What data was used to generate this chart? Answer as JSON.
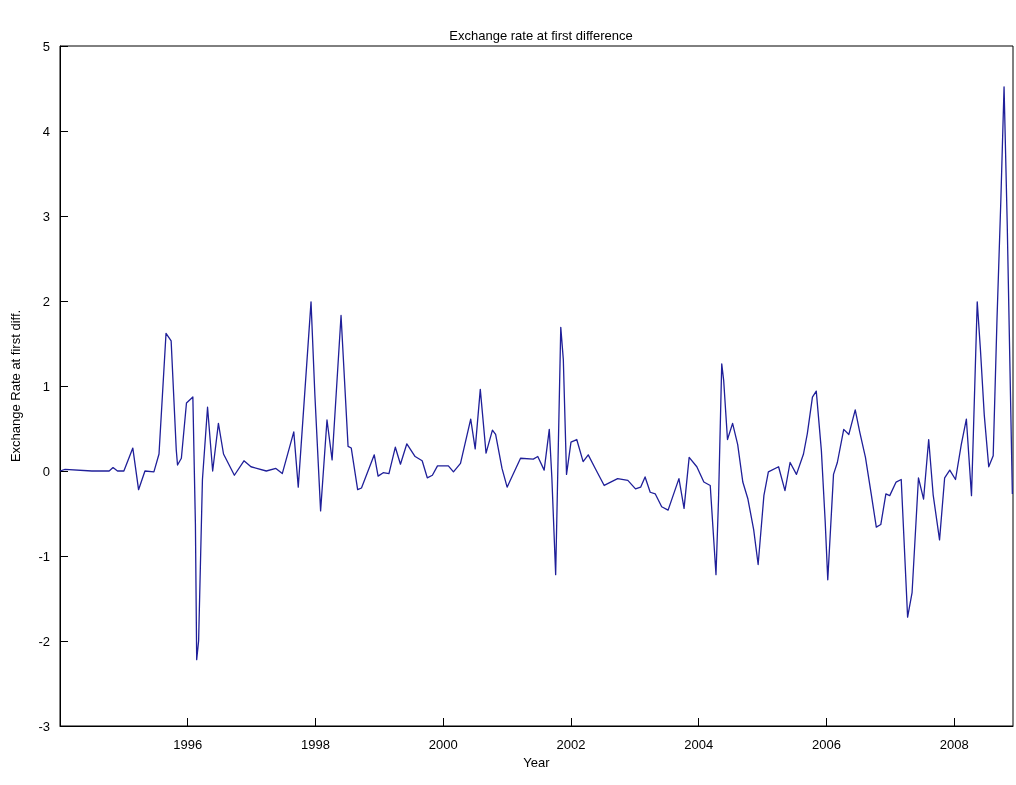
{
  "chart_data": {
    "type": "line",
    "title": "Exchange rate at first difference",
    "xlabel": "Year",
    "ylabel": "Exchange Rate at first diff.",
    "x": [
      1994.0,
      1994.08,
      1994.5,
      1994.77,
      1994.83,
      1994.9,
      1995.0,
      1995.14,
      1995.23,
      1995.33,
      1995.47,
      1995.55,
      1995.66,
      1995.74,
      1995.82,
      1995.84,
      1995.9,
      1995.98,
      1996.08,
      1996.12,
      1996.14,
      1996.17,
      1996.23,
      1996.31,
      1996.39,
      1996.48,
      1996.56,
      1996.73,
      1996.88,
      1996.99,
      1997.23,
      1997.38,
      1997.48,
      1997.66,
      1997.73,
      1997.93,
      1997.99,
      1998.08,
      1998.18,
      1998.26,
      1998.4,
      1998.51,
      1998.56,
      1998.66,
      1998.72,
      1998.92,
      1998.98,
      1999.06,
      1999.15,
      1999.25,
      1999.33,
      1999.43,
      1999.56,
      1999.67,
      1999.75,
      1999.83,
      1999.91,
      2000.08,
      2000.16,
      2000.27,
      2000.43,
      2000.5,
      2000.58,
      2000.67,
      2000.77,
      2000.82,
      2000.92,
      2001.0,
      2001.21,
      2001.41,
      2001.48,
      2001.58,
      2001.66,
      2001.7,
      2001.76,
      2001.84,
      2001.88,
      2001.93,
      2002.0,
      2002.09,
      2002.19,
      2002.27,
      2002.38,
      2002.52,
      2002.73,
      2002.89,
      2003.01,
      2003.09,
      2003.16,
      2003.24,
      2003.32,
      2003.42,
      2003.52,
      2003.69,
      2003.77,
      2003.85,
      2003.97,
      2004.08,
      2004.18,
      2004.27,
      2004.31,
      2004.36,
      2004.39,
      2004.45,
      2004.53,
      2004.61,
      2004.69,
      2004.77,
      2004.86,
      2004.93,
      2005.02,
      2005.09,
      2005.25,
      2005.35,
      2005.43,
      2005.53,
      2005.64,
      2005.7,
      2005.78,
      2005.84,
      2005.92,
      2005.98,
      2006.02,
      2006.11,
      2006.17,
      2006.27,
      2006.35,
      2006.45,
      2006.52,
      2006.61,
      2006.7,
      2006.78,
      2006.85,
      2006.93,
      2006.99,
      2007.09,
      2007.17,
      2007.27,
      2007.34,
      2007.44,
      2007.52,
      2007.6,
      2007.67,
      2007.77,
      2007.85,
      2007.93,
      2008.02,
      2008.11,
      2008.19,
      2008.27,
      2008.3,
      2008.36,
      2008.41,
      2008.47,
      2008.54,
      2008.61,
      2008.67,
      2008.73,
      2008.78,
      2008.83,
      2008.91
    ],
    "series": [
      {
        "color": "#1f1f99",
        "values": [
          0.0,
          0.02,
          0.0,
          0.0,
          0.04,
          0.0,
          0.0,
          0.27,
          -0.22,
          0.0,
          -0.01,
          0.2,
          1.62,
          1.53,
          0.25,
          0.07,
          0.15,
          0.8,
          0.87,
          -0.63,
          -2.22,
          -2.0,
          -0.1,
          0.75,
          0.0,
          0.56,
          0.2,
          -0.05,
          0.12,
          0.05,
          0.0,
          0.03,
          -0.03,
          0.46,
          -0.19,
          1.99,
          0.9,
          -0.47,
          0.6,
          0.13,
          1.83,
          0.29,
          0.27,
          -0.22,
          -0.2,
          0.19,
          -0.06,
          -0.02,
          -0.03,
          0.28,
          0.08,
          0.32,
          0.17,
          0.12,
          -0.08,
          -0.05,
          0.06,
          0.06,
          -0.01,
          0.09,
          0.61,
          0.26,
          0.96,
          0.21,
          0.48,
          0.43,
          0.03,
          -0.19,
          0.15,
          0.14,
          0.17,
          0.01,
          0.49,
          -0.07,
          -1.22,
          1.69,
          1.31,
          -0.04,
          0.34,
          0.37,
          0.11,
          0.19,
          0.03,
          -0.17,
          -0.09,
          -0.11,
          -0.21,
          -0.19,
          -0.07,
          -0.25,
          -0.27,
          -0.42,
          -0.46,
          -0.09,
          -0.44,
          0.16,
          0.05,
          -0.13,
          -0.17,
          -1.22,
          -0.33,
          1.26,
          1.07,
          0.37,
          0.56,
          0.31,
          -0.13,
          -0.33,
          -0.69,
          -1.1,
          -0.29,
          -0.01,
          0.05,
          -0.23,
          0.1,
          -0.04,
          0.2,
          0.44,
          0.87,
          0.94,
          0.24,
          -0.6,
          -1.28,
          -0.04,
          0.1,
          0.49,
          0.43,
          0.72,
          0.46,
          0.16,
          -0.27,
          -0.66,
          -0.63,
          -0.27,
          -0.29,
          -0.13,
          -0.1,
          -1.72,
          -1.43,
          -0.08,
          -0.33,
          0.37,
          -0.28,
          -0.81,
          -0.08,
          0.01,
          -0.1,
          0.31,
          0.61,
          -0.29,
          0.45,
          1.99,
          1.43,
          0.66,
          0.05,
          0.18,
          1.8,
          3.19,
          4.52,
          2.89,
          -0.27
        ]
      }
    ],
    "xlim": [
      1994,
      2008.92
    ],
    "xticks": [
      1996,
      1998,
      2000,
      2002,
      2004,
      2006,
      2008
    ],
    "ylim": [
      -3,
      5
    ],
    "yticks": [
      -3,
      -2,
      -1,
      0,
      1,
      2,
      3,
      4,
      5
    ],
    "grid": false,
    "marker": "none",
    "line_style": "solid"
  }
}
